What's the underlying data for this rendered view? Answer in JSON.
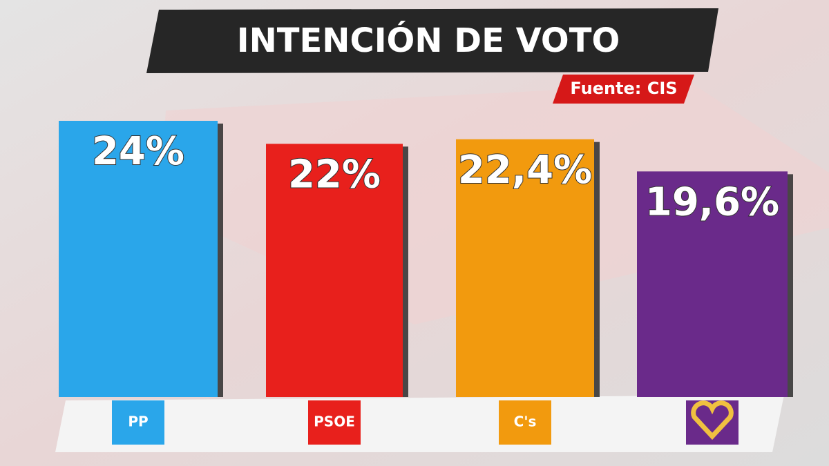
{
  "chart_data": {
    "type": "bar",
    "title": "INTENCIÓN DE VOTO",
    "subtitle": "Fuente: CIS",
    "categories": [
      "PP",
      "PSOE",
      "C's",
      null
    ],
    "values": [
      24,
      22,
      22.4,
      19.6
    ],
    "value_labels": [
      "24%",
      "22%",
      "22,4%",
      "19,6%"
    ],
    "colors": [
      "#2aa6ea",
      "#e8201c",
      "#f29a0e",
      "#6a2a8a"
    ]
  }
}
